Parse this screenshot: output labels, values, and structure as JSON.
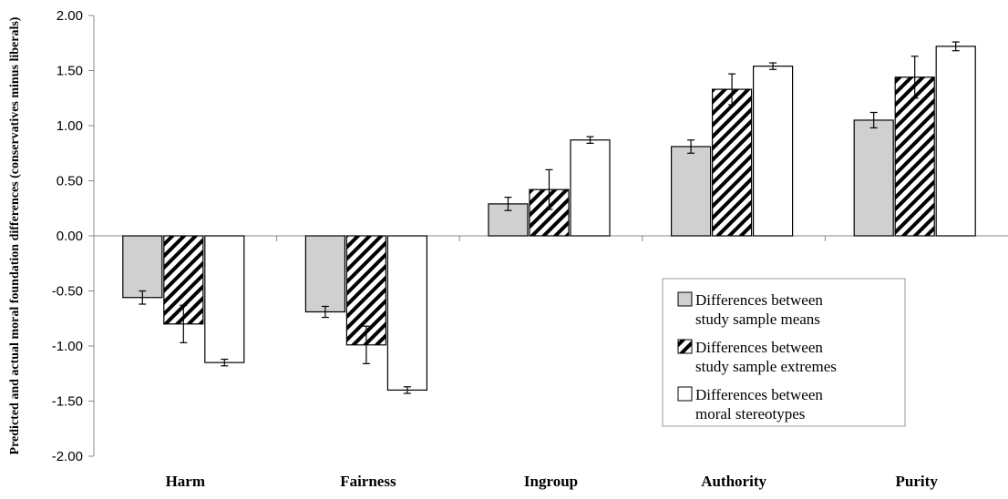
{
  "chart_data": {
    "type": "bar",
    "title": "",
    "xlabel": "",
    "ylabel": "Predicted and actual moral foundation differences (conservatives minus liberals)",
    "ylim": [
      -2.0,
      2.0
    ],
    "ytick_step": 0.5,
    "ytick_labels": [
      "-2.00",
      "-1.50",
      "-1.00",
      "-0.50",
      "0.00",
      "0.50",
      "1.00",
      "1.50",
      "2.00"
    ],
    "grid": false,
    "legend_position": "bottom-right",
    "categories": [
      "Harm",
      "Fairness",
      "Ingroup",
      "Authority",
      "Purity"
    ],
    "series": [
      {
        "name": [
          "Differences between",
          "study sample means"
        ],
        "fill": "gray",
        "color": "#d0d0d0",
        "values": [
          -0.56,
          -0.69,
          0.29,
          0.81,
          1.05
        ],
        "errors": [
          0.06,
          0.05,
          0.06,
          0.06,
          0.07
        ]
      },
      {
        "name": [
          "Differences between",
          "study sample extremes"
        ],
        "fill": "hatch",
        "color": "#000000",
        "values": [
          -0.8,
          -0.99,
          0.42,
          1.33,
          1.44
        ],
        "errors": [
          0.17,
          0.17,
          0.18,
          0.14,
          0.19
        ]
      },
      {
        "name": [
          "Differences between",
          "moral stereotypes"
        ],
        "fill": "white",
        "color": "#ffffff",
        "values": [
          -1.15,
          -1.4,
          0.87,
          1.54,
          1.72
        ],
        "errors": [
          0.03,
          0.03,
          0.03,
          0.03,
          0.04
        ]
      }
    ]
  }
}
